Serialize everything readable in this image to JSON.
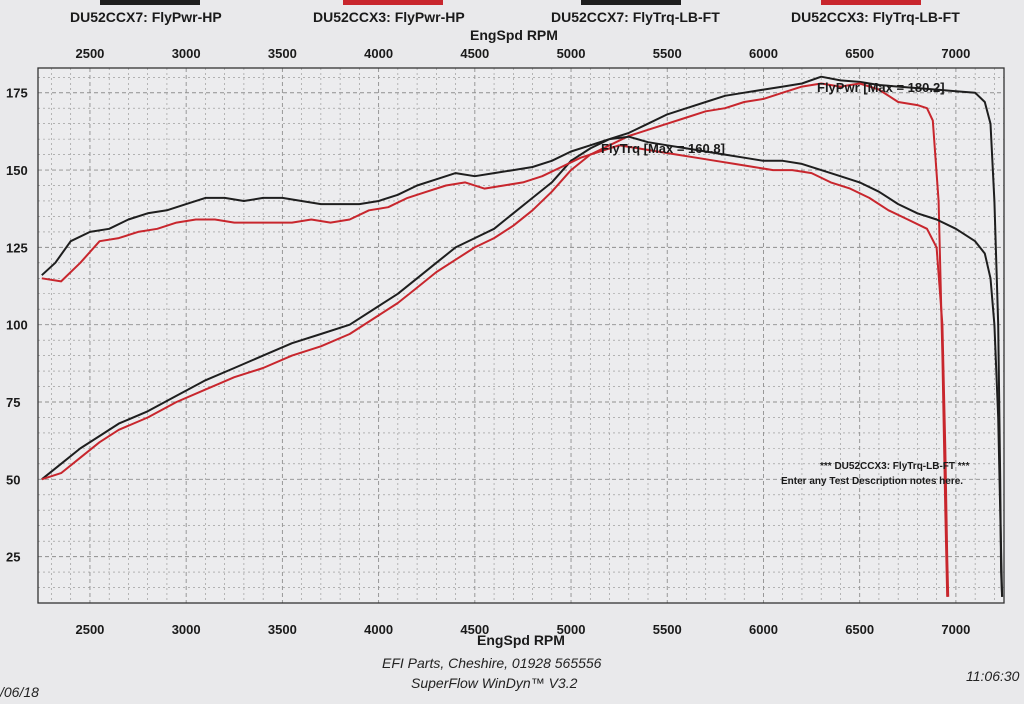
{
  "legend": [
    {
      "label": "DU52CCX7: FlyPwr-HP",
      "swatch_color": "#1e1e1e"
    },
    {
      "label": "DU52CCX3: FlyPwr-HP",
      "swatch_color": "#c8262d"
    },
    {
      "label": "DU52CCX7: FlyTrq-LB-FT",
      "swatch_color": "#1e1e1e"
    },
    {
      "label": "DU52CCX3: FlyTrq-LB-FT",
      "swatch_color": "#c8262d"
    }
  ],
  "footer": {
    "company": "EFI Parts, Cheshire, 01928 565556",
    "software": "SuperFlow WinDyn™ V3.2",
    "date_fragment": "/06/18",
    "time_fragment": "11:06:30"
  },
  "colors": {
    "black_series": "#1e1e1e",
    "red_series": "#c8262d",
    "grid": "#8f8f8f",
    "background": "#e9e9eb"
  },
  "chart_data": {
    "type": "line",
    "title": "",
    "xlabel": "EngSpd RPM",
    "ylabel": "",
    "xlim": [
      2230,
      7250
    ],
    "ylim": [
      10,
      183
    ],
    "x_ticks": [
      2500,
      3000,
      3500,
      4000,
      4500,
      5000,
      5500,
      6000,
      6500,
      7000
    ],
    "y_ticks": [
      25,
      50,
      75,
      100,
      125,
      150,
      175
    ],
    "grid": true,
    "annotations": [
      {
        "text": "FlyPwr [Max = 180.2]",
        "x": 6300,
        "y": 180.2
      },
      {
        "text": "FlyTrq [Max = 160.8]",
        "x": 5250,
        "y": 160.8
      }
    ],
    "notes": [
      "*** DU52CCX3: FlyTrq-LB-FT ***",
      "Enter any Test Description notes here."
    ],
    "series": [
      {
        "name": "DU52CCX7: FlyPwr-HP",
        "color": "#1e1e1e",
        "points": [
          [
            2250,
            50
          ],
          [
            2350,
            55
          ],
          [
            2450,
            60
          ],
          [
            2550,
            64
          ],
          [
            2650,
            68
          ],
          [
            2800,
            72
          ],
          [
            2950,
            77
          ],
          [
            3100,
            82
          ],
          [
            3250,
            86
          ],
          [
            3400,
            90
          ],
          [
            3550,
            94
          ],
          [
            3700,
            97
          ],
          [
            3850,
            100
          ],
          [
            4000,
            106
          ],
          [
            4100,
            110
          ],
          [
            4200,
            115
          ],
          [
            4300,
            120
          ],
          [
            4400,
            125
          ],
          [
            4500,
            128
          ],
          [
            4600,
            131
          ],
          [
            4700,
            136
          ],
          [
            4800,
            141
          ],
          [
            4900,
            146
          ],
          [
            5000,
            153
          ],
          [
            5100,
            157
          ],
          [
            5200,
            160
          ],
          [
            5300,
            162
          ],
          [
            5400,
            165
          ],
          [
            5500,
            168
          ],
          [
            5600,
            170
          ],
          [
            5700,
            172
          ],
          [
            5800,
            174
          ],
          [
            5900,
            175
          ],
          [
            6000,
            176
          ],
          [
            6100,
            177
          ],
          [
            6200,
            178
          ],
          [
            6300,
            180.2
          ],
          [
            6400,
            179
          ],
          [
            6500,
            178.5
          ],
          [
            6600,
            177.5
          ],
          [
            6700,
            177
          ],
          [
            6800,
            176.5
          ],
          [
            6900,
            176
          ],
          [
            7000,
            175.5
          ],
          [
            7100,
            175
          ],
          [
            7150,
            172
          ],
          [
            7180,
            165
          ],
          [
            7200,
            140
          ],
          [
            7220,
            100
          ],
          [
            7230,
            50
          ],
          [
            7235,
            20
          ],
          [
            7240,
            12
          ]
        ]
      },
      {
        "name": "DU52CCX3: FlyPwr-HP",
        "color": "#c8262d",
        "points": [
          [
            2250,
            50
          ],
          [
            2350,
            52
          ],
          [
            2450,
            57
          ],
          [
            2550,
            62
          ],
          [
            2650,
            66
          ],
          [
            2800,
            70
          ],
          [
            2950,
            75
          ],
          [
            3100,
            79
          ],
          [
            3250,
            83
          ],
          [
            3400,
            86
          ],
          [
            3550,
            90
          ],
          [
            3700,
            93
          ],
          [
            3850,
            97
          ],
          [
            4000,
            103
          ],
          [
            4100,
            107
          ],
          [
            4200,
            112
          ],
          [
            4300,
            117
          ],
          [
            4400,
            121
          ],
          [
            4500,
            125
          ],
          [
            4600,
            128
          ],
          [
            4700,
            132
          ],
          [
            4800,
            137
          ],
          [
            4900,
            143
          ],
          [
            5000,
            150
          ],
          [
            5100,
            155
          ],
          [
            5200,
            158
          ],
          [
            5300,
            161
          ],
          [
            5400,
            163
          ],
          [
            5500,
            165
          ],
          [
            5600,
            167
          ],
          [
            5700,
            169
          ],
          [
            5800,
            170
          ],
          [
            5900,
            172
          ],
          [
            6000,
            173
          ],
          [
            6100,
            175
          ],
          [
            6200,
            177
          ],
          [
            6300,
            178
          ],
          [
            6400,
            177
          ],
          [
            6500,
            178
          ],
          [
            6600,
            176
          ],
          [
            6700,
            172
          ],
          [
            6800,
            171
          ],
          [
            6850,
            170
          ],
          [
            6880,
            166
          ],
          [
            6910,
            140
          ],
          [
            6930,
            90
          ],
          [
            6945,
            40
          ],
          [
            6955,
            12
          ]
        ]
      },
      {
        "name": "DU52CCX7: FlyTrq-LB-FT",
        "color": "#1e1e1e",
        "points": [
          [
            2250,
            116
          ],
          [
            2320,
            120
          ],
          [
            2400,
            127
          ],
          [
            2500,
            130
          ],
          [
            2600,
            131
          ],
          [
            2700,
            134
          ],
          [
            2800,
            136
          ],
          [
            2900,
            137
          ],
          [
            3000,
            139
          ],
          [
            3100,
            141
          ],
          [
            3200,
            141
          ],
          [
            3300,
            140
          ],
          [
            3400,
            141
          ],
          [
            3500,
            141
          ],
          [
            3600,
            140
          ],
          [
            3700,
            139
          ],
          [
            3800,
            139
          ],
          [
            3900,
            139
          ],
          [
            4000,
            140
          ],
          [
            4100,
            142
          ],
          [
            4200,
            145
          ],
          [
            4300,
            147
          ],
          [
            4400,
            149
          ],
          [
            4500,
            148
          ],
          [
            4600,
            149
          ],
          [
            4700,
            150
          ],
          [
            4800,
            151
          ],
          [
            4900,
            153
          ],
          [
            5000,
            156
          ],
          [
            5100,
            158
          ],
          [
            5200,
            160
          ],
          [
            5300,
            160.8
          ],
          [
            5400,
            159
          ],
          [
            5500,
            158
          ],
          [
            5600,
            157
          ],
          [
            5700,
            156
          ],
          [
            5800,
            155
          ],
          [
            5900,
            154
          ],
          [
            6000,
            153
          ],
          [
            6100,
            153
          ],
          [
            6200,
            152
          ],
          [
            6300,
            150
          ],
          [
            6400,
            148
          ],
          [
            6500,
            146
          ],
          [
            6600,
            143
          ],
          [
            6700,
            139
          ],
          [
            6800,
            136
          ],
          [
            6900,
            134
          ],
          [
            7000,
            131
          ],
          [
            7100,
            127
          ],
          [
            7150,
            123
          ],
          [
            7180,
            115
          ],
          [
            7200,
            100
          ],
          [
            7220,
            70
          ],
          [
            7230,
            40
          ],
          [
            7240,
            12
          ]
        ]
      },
      {
        "name": "DU52CCX3: FlyTrq-LB-FT",
        "color": "#c8262d",
        "points": [
          [
            2250,
            115
          ],
          [
            2350,
            114
          ],
          [
            2450,
            120
          ],
          [
            2550,
            127
          ],
          [
            2650,
            128
          ],
          [
            2750,
            130
          ],
          [
            2850,
            131
          ],
          [
            2950,
            133
          ],
          [
            3050,
            134
          ],
          [
            3150,
            134
          ],
          [
            3250,
            133
          ],
          [
            3350,
            133
          ],
          [
            3450,
            133
          ],
          [
            3550,
            133
          ],
          [
            3650,
            134
          ],
          [
            3750,
            133
          ],
          [
            3850,
            134
          ],
          [
            3950,
            137
          ],
          [
            4050,
            138
          ],
          [
            4150,
            141
          ],
          [
            4250,
            143
          ],
          [
            4350,
            145
          ],
          [
            4450,
            146
          ],
          [
            4550,
            144
          ],
          [
            4650,
            145
          ],
          [
            4750,
            146
          ],
          [
            4850,
            148
          ],
          [
            4950,
            151
          ],
          [
            5050,
            154
          ],
          [
            5150,
            156
          ],
          [
            5250,
            158
          ],
          [
            5350,
            157
          ],
          [
            5450,
            156
          ],
          [
            5550,
            155
          ],
          [
            5650,
            154
          ],
          [
            5750,
            153
          ],
          [
            5850,
            152
          ],
          [
            5950,
            151
          ],
          [
            6050,
            150
          ],
          [
            6150,
            150
          ],
          [
            6250,
            149
          ],
          [
            6350,
            146
          ],
          [
            6450,
            144
          ],
          [
            6550,
            141
          ],
          [
            6650,
            137
          ],
          [
            6750,
            134
          ],
          [
            6850,
            131
          ],
          [
            6900,
            125
          ],
          [
            6930,
            100
          ],
          [
            6945,
            60
          ],
          [
            6955,
            25
          ],
          [
            6960,
            12
          ]
        ]
      }
    ]
  }
}
